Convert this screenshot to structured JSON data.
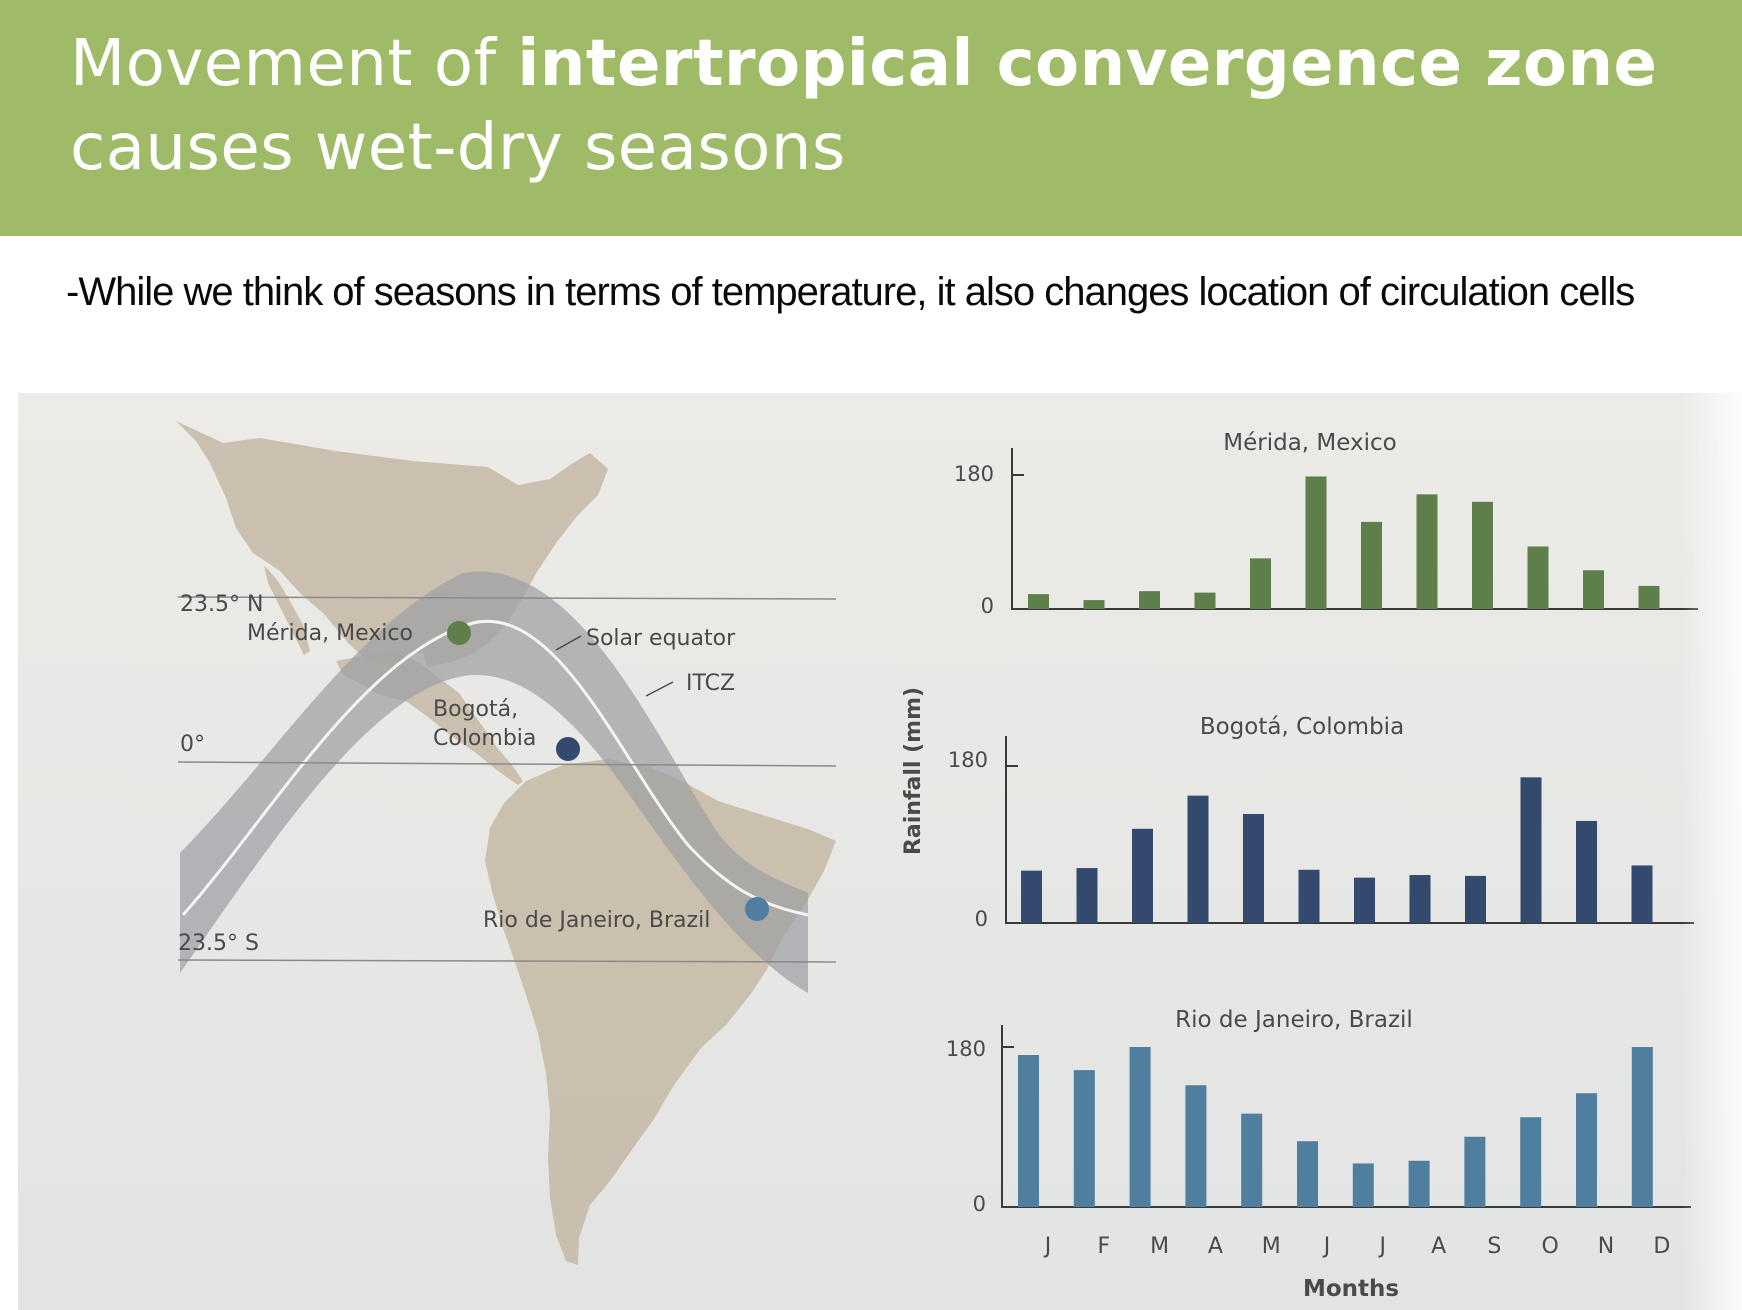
{
  "slide": {
    "title_part1": "Movement of ",
    "title_bold": "intertropical convergence zone",
    "title_part2": "causes wet-dry seasons",
    "subtitle": "-While we think of seasons in terms of temperature, it also changes location of circulation cells"
  },
  "map": {
    "lat_north": "23.5° N",
    "lat_equator": "0°",
    "lat_south": "23.5° S",
    "solar_equator": "Solar equator",
    "itcz": "ITCZ",
    "merida": "Mérida, Mexico",
    "bogota_line1": "Bogotá,",
    "bogota_line2": "Colombia",
    "rio": "Rio de Janeiro, Brazil"
  },
  "colors": {
    "merida": "#5e7f4a",
    "bogota": "#34496e",
    "rio": "#4f7e9e",
    "land": "#c6b8a4",
    "itcz_band": "#9da0a3",
    "banner": "#a0bb67"
  },
  "chart_data": {
    "type": "bar",
    "categories": [
      "J",
      "F",
      "M",
      "A",
      "M",
      "J",
      "J",
      "A",
      "S",
      "O",
      "N",
      "D"
    ],
    "xlabel": "Months",
    "ylabel": "Rainfall (mm)",
    "ylim": [
      0,
      180
    ],
    "yticks": [
      "0",
      "180"
    ],
    "series": [
      {
        "name": "Mérida, Mexico",
        "values": [
          20,
          12,
          24,
          22,
          68,
          178,
          117,
          154,
          144,
          84,
          52,
          31
        ]
      },
      {
        "name": "Bogotá, Colombia",
        "values": [
          60,
          63,
          108,
          146,
          125,
          61,
          52,
          55,
          54,
          167,
          117,
          66
        ]
      },
      {
        "name": "Rio de Janeiro, Brazil",
        "values": [
          171,
          154,
          180,
          137,
          105,
          74,
          49,
          52,
          79,
          101,
          128,
          180
        ]
      }
    ]
  }
}
